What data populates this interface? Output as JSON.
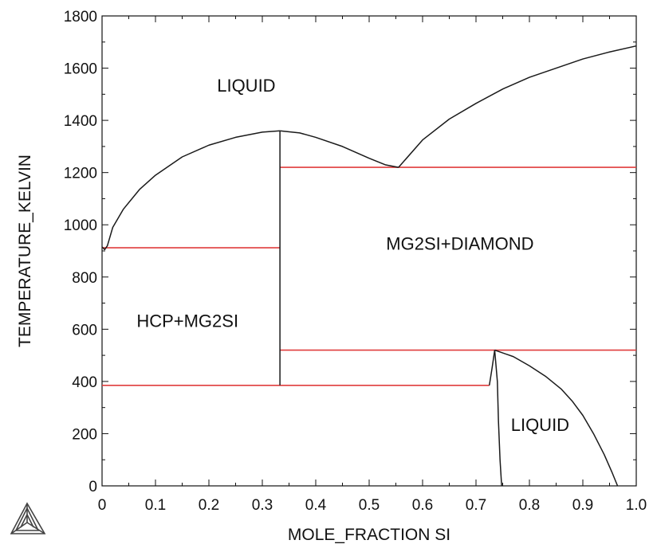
{
  "chart_data": {
    "type": "line",
    "title": "",
    "xlabel": "MOLE_FRACTION SI",
    "ylabel": "TEMPERATURE_KELVIN",
    "xlim": [
      0,
      1
    ],
    "ylim": [
      0,
      1800
    ],
    "x_ticks": [
      "0",
      "0.1",
      "0.2",
      "0.3",
      "0.4",
      "0.5",
      "0.6",
      "0.7",
      "0.8",
      "0.9",
      "1.0"
    ],
    "y_ticks": [
      "0",
      "200",
      "400",
      "600",
      "800",
      "1000",
      "1200",
      "1400",
      "1600",
      "1800"
    ],
    "grid": false,
    "phase_boundary_color": "#1a1a1a",
    "tie_line_color": "#e03c3c",
    "phase_boundaries": [
      {
        "x": [
          0.0,
          0.005,
          0.01,
          0.02,
          0.04,
          0.07,
          0.1,
          0.15,
          0.2,
          0.25,
          0.3,
          0.333
        ],
        "y": [
          915,
          905,
          920,
          990,
          1060,
          1135,
          1190,
          1260,
          1305,
          1335,
          1355,
          1360
        ]
      },
      {
        "x": [
          0.333,
          0.333
        ],
        "y": [
          1360,
          385
        ]
      },
      {
        "x": [
          0.333,
          0.37,
          0.4,
          0.45,
          0.5,
          0.53,
          0.555
        ],
        "y": [
          1360,
          1352,
          1335,
          1300,
          1255,
          1230,
          1220
        ]
      },
      {
        "x": [
          0.555,
          0.6,
          0.65,
          0.7,
          0.75,
          0.8,
          0.85,
          0.9,
          0.95,
          1.0
        ],
        "y": [
          1220,
          1325,
          1405,
          1465,
          1520,
          1565,
          1600,
          1635,
          1662,
          1685
        ]
      },
      {
        "x": [
          0.725,
          0.73,
          0.735
        ],
        "y": [
          385,
          450,
          520
        ]
      },
      {
        "x": [
          0.735,
          0.74,
          0.742,
          0.745,
          0.748
        ],
        "y": [
          520,
          400,
          250,
          100,
          0
        ]
      },
      {
        "x": [
          0.735,
          0.77,
          0.8,
          0.83,
          0.86,
          0.88,
          0.9,
          0.92,
          0.94,
          0.955,
          0.965
        ],
        "y": [
          520,
          495,
          460,
          420,
          370,
          325,
          270,
          200,
          120,
          50,
          0
        ]
      }
    ],
    "tie_lines": [
      {
        "x": [
          0.0,
          0.333
        ],
        "y": [
          912,
          912
        ]
      },
      {
        "x": [
          0.0,
          0.725
        ],
        "y": [
          385,
          385
        ]
      },
      {
        "x": [
          0.333,
          1.0
        ],
        "y": [
          1220,
          1220
        ]
      },
      {
        "x": [
          0.333,
          1.0
        ],
        "y": [
          520,
          520
        ]
      }
    ],
    "annotations": [
      {
        "text": "LIQUID",
        "x": 0.27,
        "y": 1510
      },
      {
        "text": "MG2SI+DIAMOND",
        "x": 0.67,
        "y": 905
      },
      {
        "text": "HCP+MG2SI",
        "x": 0.16,
        "y": 608
      },
      {
        "text": "LIQUID",
        "x": 0.82,
        "y": 210
      }
    ]
  },
  "logo": {
    "name": "thermo-calc-triangle-icon"
  }
}
